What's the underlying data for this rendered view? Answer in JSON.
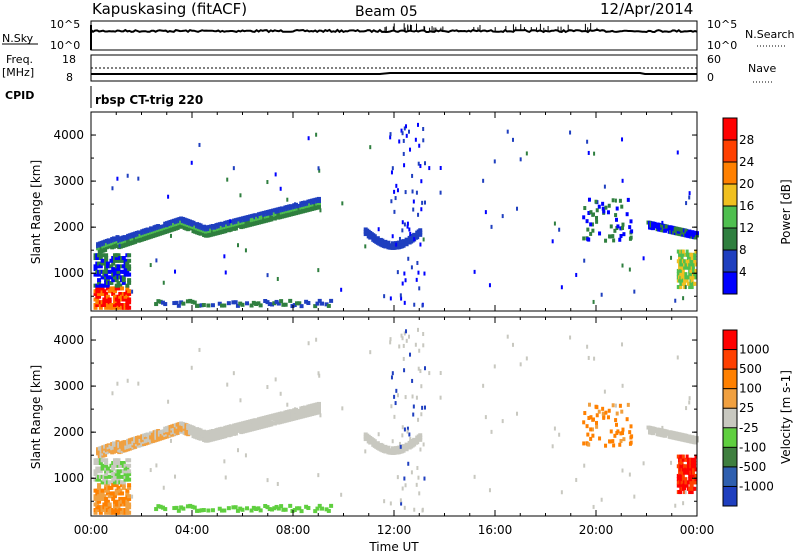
{
  "header": {
    "station": "Kapuskasing (fitACF)",
    "beam": "Beam 05",
    "date": "12/Apr/2014"
  },
  "top_panels": {
    "nsky_label": "N.Sky",
    "nsky_ticks": [
      "10^5",
      "10^0"
    ],
    "nsearch_label": "N.Search",
    "nsearch_ticks": [
      "10^5",
      "10^0"
    ],
    "freq_label": "Freq.",
    "freq_unit": "[MHz]",
    "freq_ticks": [
      "18",
      "8"
    ],
    "nave_label": "Nave",
    "nave_ticks": [
      "60",
      "0"
    ],
    "cpid_label": "CPID",
    "cpid_value": "rbsp CT-trig 220"
  },
  "chart_data": [
    {
      "type": "heatmap",
      "name": "power",
      "ylabel": "Slant Range [km]",
      "xlabel": "Time UT",
      "xlim": [
        0,
        24
      ],
      "ylim": [
        180,
        4500
      ],
      "y_ticks": [
        "1000",
        "2000",
        "3000",
        "4000"
      ],
      "x_ticks": [
        "00:00",
        "04:00",
        "08:00",
        "12:00",
        "16:00",
        "20:00",
        "00:00"
      ],
      "colorbar": {
        "label": "Power [dB]",
        "ticks": [
          "28",
          "24",
          "20",
          "16",
          "12",
          "8",
          "4"
        ],
        "colors": [
          "#0000ff",
          "#1f3fbf",
          "#2f7f3f",
          "#4fbf4f",
          "#f0c020",
          "#ff8000",
          "#ff4000",
          "#ff0000"
        ]
      }
    },
    {
      "type": "heatmap",
      "name": "velocity",
      "ylabel": "Slant Range [km]",
      "xlabel": "Time UT",
      "xlim": [
        0,
        24
      ],
      "ylim": [
        180,
        4500
      ],
      "y_ticks": [
        "1000",
        "2000",
        "3000",
        "4000"
      ],
      "x_ticks": [
        "00:00",
        "04:00",
        "08:00",
        "12:00",
        "16:00",
        "20:00",
        "00:00"
      ],
      "colorbar": {
        "label": "Velocity [m s-1]",
        "ticks": [
          "1000",
          "500",
          "100",
          "25",
          "-25",
          "-100",
          "-500",
          "-1000"
        ],
        "colors": [
          "#1f3fbf",
          "#2f5faf",
          "#3f7f3f",
          "#5fcf3f",
          "#c8c8c0",
          "#f0a040",
          "#ff8000",
          "#ff4000",
          "#ff0000"
        ]
      }
    }
  ],
  "footer": {
    "xlabel": "Time UT"
  }
}
